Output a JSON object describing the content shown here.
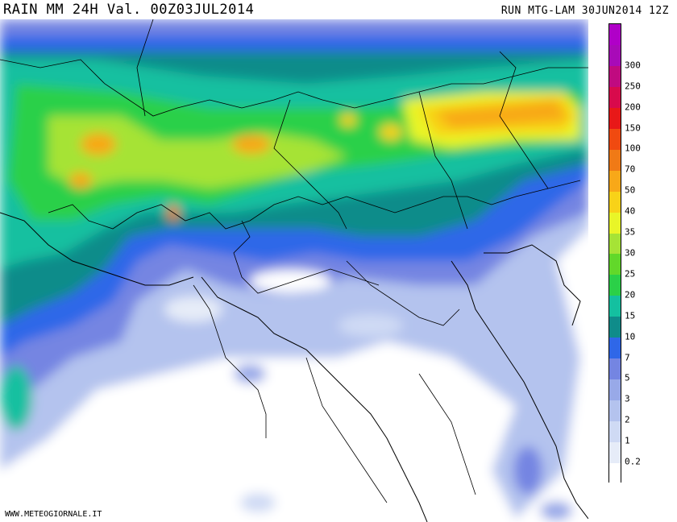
{
  "header": {
    "title": "RAIN MM 24H Val. 00Z03JUL2014",
    "run": "RUN MTG-LAM 30JUN2014 12Z"
  },
  "legend": {
    "levels": [
      {
        "label": "",
        "color": "#ffffff"
      },
      {
        "label": "0.2",
        "color": "#e6ecf8"
      },
      {
        "label": "1",
        "color": "#cfdaf4"
      },
      {
        "label": "2",
        "color": "#b4c3ee"
      },
      {
        "label": "3",
        "color": "#98a9e8"
      },
      {
        "label": "5",
        "color": "#7485e2"
      },
      {
        "label": "7",
        "color": "#2f67e8"
      },
      {
        "label": "10",
        "color": "#0f8c8a"
      },
      {
        "label": "15",
        "color": "#14c0a0"
      },
      {
        "label": "20",
        "color": "#2bd048"
      },
      {
        "label": "25",
        "color": "#62d82a"
      },
      {
        "label": "30",
        "color": "#a6e336"
      },
      {
        "label": "35",
        "color": "#e9f528"
      },
      {
        "label": "40",
        "color": "#f8d218"
      },
      {
        "label": "50",
        "color": "#f8a818"
      },
      {
        "label": "70",
        "color": "#f07a16"
      },
      {
        "label": "100",
        "color": "#f04a10"
      },
      {
        "label": "150",
        "color": "#e81818"
      },
      {
        "label": "200",
        "color": "#d80a4c"
      },
      {
        "label": "250",
        "color": "#c00a80"
      },
      {
        "label": "300",
        "color": "#a80ab8"
      },
      {
        "label": "",
        "color": "#b000c8"
      }
    ]
  },
  "footer": {
    "credit": "WWW.METEOGIORNALE.IT"
  }
}
